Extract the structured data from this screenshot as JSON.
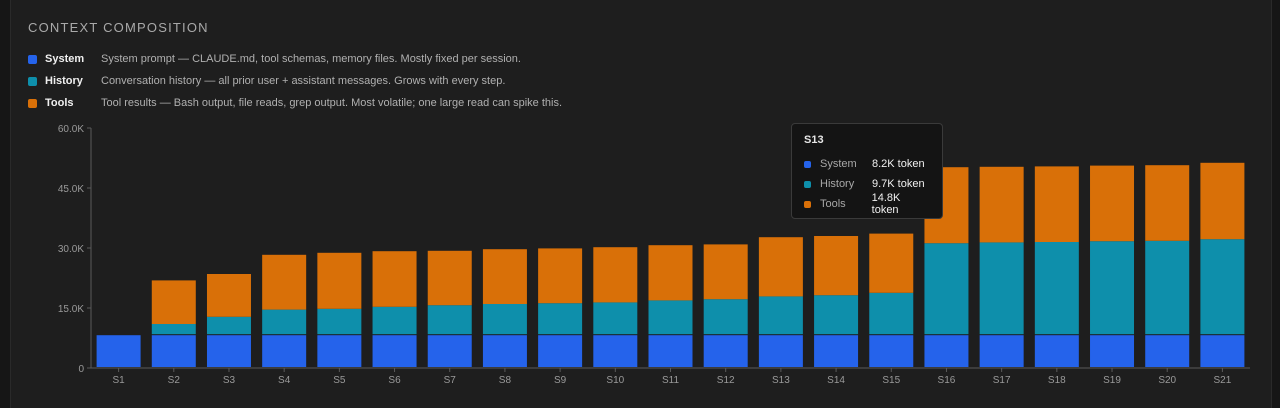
{
  "title": "CONTEXT COMPOSITION",
  "colors": {
    "system": "#2563eb",
    "history": "#0e8fab",
    "tools": "#d97008"
  },
  "legend": [
    {
      "name": "System",
      "desc": "System prompt — CLAUDE.md, tool schemas, memory files. Mostly fixed per session."
    },
    {
      "name": "History",
      "desc": "Conversation history — all prior user + assistant messages. Grows with every step."
    },
    {
      "name": "Tools",
      "desc": "Tool results — Bash output, file reads, grep output. Most volatile; one large read can spike this."
    }
  ],
  "tooltip": {
    "title": "S13",
    "rows": [
      {
        "label": "System",
        "value": "8.2K token"
      },
      {
        "label": "History",
        "value": "9.7K token"
      },
      {
        "label": "Tools",
        "value": "14.8K token"
      }
    ]
  },
  "chart_data": {
    "type": "bar",
    "stacked": true,
    "categories": [
      "S1",
      "S2",
      "S3",
      "S4",
      "S5",
      "S6",
      "S7",
      "S8",
      "S9",
      "S10",
      "S11",
      "S12",
      "S13",
      "S14",
      "S15",
      "S16",
      "S17",
      "S18",
      "S19",
      "S20",
      "S21"
    ],
    "series": [
      {
        "name": "System",
        "values": [
          8.2,
          8.2,
          8.2,
          8.2,
          8.2,
          8.2,
          8.2,
          8.2,
          8.2,
          8.2,
          8.2,
          8.2,
          8.2,
          8.2,
          8.2,
          8.2,
          8.2,
          8.2,
          8.2,
          8.2,
          8.2
        ]
      },
      {
        "name": "History",
        "values": [
          0,
          2.8,
          4.6,
          6.4,
          6.6,
          7.1,
          7.5,
          7.8,
          8.0,
          8.2,
          8.7,
          9.0,
          9.7,
          10.0,
          10.6,
          23.0,
          23.2,
          23.3,
          23.5,
          23.6,
          24.0
        ]
      },
      {
        "name": "Tools",
        "values": [
          0,
          10.9,
          10.7,
          13.7,
          14.0,
          13.9,
          13.6,
          13.7,
          13.7,
          13.8,
          13.8,
          13.7,
          14.8,
          14.8,
          14.8,
          19.0,
          18.9,
          18.9,
          18.9,
          18.9,
          19.1
        ]
      }
    ],
    "yticks": [
      "0",
      "15.0K",
      "30.0K",
      "45.0K",
      "60.0K"
    ],
    "ytick_values": [
      0,
      15,
      30,
      45,
      60
    ],
    "ylim": [
      0,
      60
    ],
    "unit": "K tokens",
    "grid": false,
    "legend_position": "top-left"
  }
}
